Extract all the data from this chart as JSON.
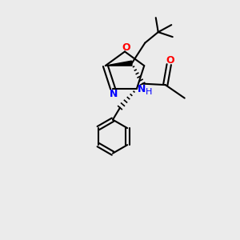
{
  "background_color": "#ebebeb",
  "bond_color": "#000000",
  "N_color": "#0000FF",
  "O_color": "#FF0000",
  "wedge_color": "#000000",
  "atoms": {
    "N_label": "N",
    "O_oxazoline": "O",
    "O_carbonyl": "O",
    "N_H": "H",
    "N_amide": "N"
  }
}
